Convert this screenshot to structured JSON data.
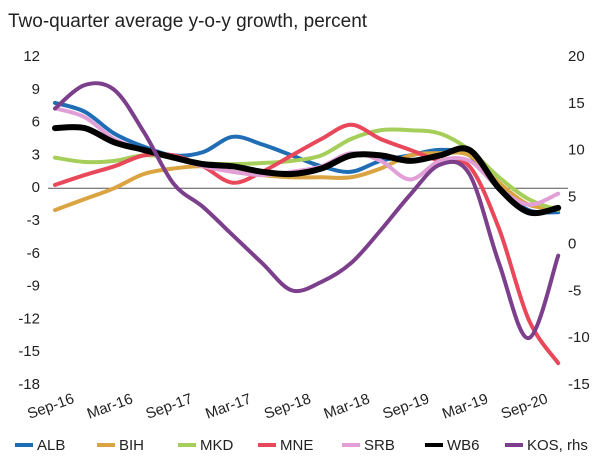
{
  "chart_data": {
    "type": "line",
    "title": "Two-quarter average y-o-y growth, percent",
    "categories": [
      "Sep-16",
      null,
      "Mar-16",
      null,
      "Sep-17",
      null,
      "Mar-17",
      null,
      "Sep-18",
      null,
      "Mar-18",
      null,
      "Sep-19",
      null,
      "Mar-19",
      null,
      "Sep-20",
      null
    ],
    "ylim": [
      -18,
      12
    ],
    "yticks": [
      12,
      9,
      6,
      3,
      0,
      -3,
      -6,
      -9,
      -12,
      -15,
      -18
    ],
    "y2lim": [
      -15,
      20
    ],
    "y2ticks": [
      20,
      15,
      10,
      5,
      0,
      -5,
      -10,
      -15
    ],
    "series": [
      {
        "name": "ALB",
        "color": "#1f6db5",
        "values": [
          7.8,
          7,
          5,
          3.8,
          3,
          3.3,
          4.7,
          4,
          3,
          2,
          1.5,
          2.5,
          3,
          3.5,
          3,
          0,
          -2,
          -2.2
        ]
      },
      {
        "name": "BIH",
        "color": "#d9a441",
        "values": [
          -2,
          -1,
          0,
          1.3,
          1.8,
          2,
          1.5,
          1.2,
          1,
          1,
          1,
          1.8,
          3,
          3.2,
          3,
          0.5,
          -1.5,
          -1.8
        ]
      },
      {
        "name": "MKD",
        "color": "#a6ce5a",
        "values": [
          2.8,
          2.4,
          2.5,
          3,
          2.8,
          2.3,
          2.2,
          2.3,
          2.5,
          3,
          4.5,
          5.3,
          5.3,
          5,
          3.5,
          1,
          -1,
          -2
        ]
      },
      {
        "name": "MNE",
        "color": "#e8485a",
        "values": [
          0.3,
          1.2,
          2,
          3,
          3,
          2,
          0.5,
          1.5,
          3,
          4.5,
          5.8,
          4.5,
          3.5,
          2.5,
          2,
          -3.7,
          -12,
          -16
        ]
      },
      {
        "name": "SRB",
        "color": "#e29ed6",
        "values": [
          7.3,
          6.5,
          4.5,
          3.5,
          2.8,
          2,
          1.5,
          1.2,
          1.5,
          2,
          3.2,
          2.5,
          0.8,
          2.5,
          2.5,
          0,
          -1.5,
          -0.5
        ]
      },
      {
        "name": "WB6",
        "color": "#000000",
        "values": [
          5.5,
          5.5,
          4.2,
          3.5,
          2.8,
          2.2,
          2,
          1.5,
          1.3,
          1.8,
          3,
          3,
          2.5,
          3,
          3.5,
          0,
          -2.2,
          -1.8
        ]
      },
      {
        "name": "KOS, rhs",
        "color": "#7b3f8c",
        "axis": "y2",
        "values": [
          14.5,
          17,
          16.5,
          12,
          6.5,
          4,
          1,
          -2,
          -4.9,
          -4,
          -2,
          1.5,
          5.3,
          8.5,
          7.5,
          -2,
          -10,
          -1.2
        ]
      }
    ]
  }
}
